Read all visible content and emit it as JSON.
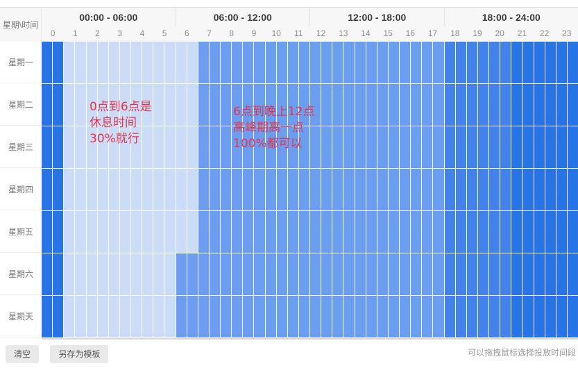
{
  "header": {
    "corner_label": "星期\\时间",
    "time_ranges": [
      "00:00 - 06:00",
      "06:00 - 12:00",
      "12:00 - 18:00",
      "18:00 - 24:00"
    ],
    "hours": [
      "0",
      "1",
      "2",
      "3",
      "4",
      "5",
      "6",
      "7",
      "8",
      "9",
      "10",
      "11",
      "12",
      "13",
      "14",
      "15",
      "16",
      "17",
      "18",
      "19",
      "20",
      "21",
      "22",
      "23"
    ]
  },
  "level_colors": {
    "1": "#cadcf8",
    "2": "#6b9ef1",
    "3": "#4183ea",
    "4": "#2674e6"
  },
  "days": [
    {
      "label": "星期一",
      "levels": [
        4,
        1,
        1,
        1,
        1,
        1,
        1,
        2,
        2,
        2,
        2,
        2,
        2,
        2,
        2,
        2,
        2,
        2,
        3,
        3,
        3,
        4,
        4,
        4
      ]
    },
    {
      "label": "星期二",
      "levels": [
        4,
        1,
        1,
        1,
        1,
        1,
        1,
        2,
        2,
        2,
        2,
        2,
        2,
        2,
        2,
        2,
        2,
        2,
        3,
        3,
        3,
        4,
        4,
        4
      ]
    },
    {
      "label": "星期三",
      "levels": [
        4,
        1,
        1,
        1,
        1,
        1,
        1,
        2,
        2,
        2,
        2,
        2,
        2,
        2,
        2,
        2,
        2,
        2,
        3,
        3,
        3,
        4,
        4,
        4
      ]
    },
    {
      "label": "星期四",
      "levels": [
        4,
        1,
        1,
        1,
        1,
        1,
        1,
        2,
        2,
        2,
        2,
        2,
        2,
        2,
        2,
        2,
        2,
        2,
        3,
        3,
        3,
        4,
        4,
        4
      ]
    },
    {
      "label": "星期五",
      "levels": [
        4,
        1,
        1,
        1,
        1,
        1,
        1,
        2,
        2,
        2,
        2,
        2,
        2,
        2,
        2,
        2,
        2,
        2,
        3,
        3,
        3,
        4,
        4,
        4
      ]
    },
    {
      "label": "星期六",
      "levels": [
        4,
        1,
        1,
        1,
        1,
        1,
        2,
        2,
        2,
        2,
        2,
        2,
        2,
        2,
        2,
        2,
        2,
        2,
        3,
        3,
        3,
        4,
        4,
        4
      ]
    },
    {
      "label": "星期天",
      "levels": [
        4,
        1,
        1,
        1,
        1,
        1,
        2,
        2,
        2,
        2,
        2,
        2,
        2,
        2,
        2,
        2,
        2,
        2,
        3,
        3,
        3,
        4,
        4,
        4
      ]
    }
  ],
  "annotations": [
    {
      "lines": [
        "0点到6点是",
        "休息时间",
        "30%就行"
      ],
      "color": "#e43549"
    },
    {
      "lines": [
        "6点到晚上12点",
        "高峰期高一点",
        "100%都可以"
      ],
      "color": "#e43549"
    }
  ],
  "footer": {
    "clear_label": "清空",
    "save_template_label": "另存为模板",
    "hint": "可以拖拽鼠标选择投放时间段"
  }
}
